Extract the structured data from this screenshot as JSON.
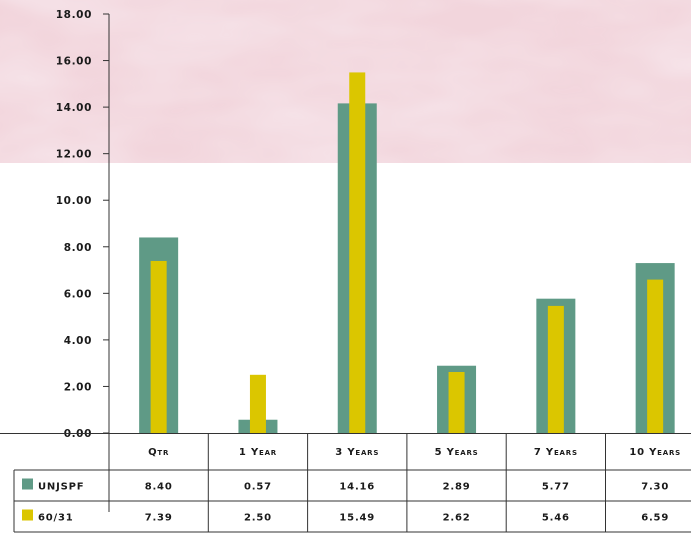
{
  "chart_data": {
    "type": "bar",
    "categories": [
      "Qtr",
      "1 Year",
      "3 Years",
      "5 Years",
      "7 Years",
      "10 Years"
    ],
    "series": [
      {
        "name": "UNJSPF",
        "values": [
          8.4,
          0.57,
          14.16,
          2.89,
          5.77,
          7.3
        ],
        "color": "#5f9a86"
      },
      {
        "name": "60/31",
        "values": [
          7.39,
          2.5,
          15.49,
          2.62,
          5.46,
          6.59
        ],
        "color": "#dbc600"
      }
    ],
    "ylim": [
      0,
      18
    ],
    "yticks": [
      "0.00",
      "2.00",
      "4.00",
      "6.00",
      "8.00",
      "10.00",
      "12.00",
      "14.00",
      "16.00",
      "18.00"
    ],
    "table": {
      "rows": [
        {
          "series": "UNJSPF",
          "cells": [
            "8.40",
            "0.57",
            "14.16",
            "2.89",
            "5.77",
            "7.30"
          ]
        },
        {
          "series": "60/31",
          "cells": [
            "7.39",
            "2.50",
            "15.49",
            "2.62",
            "5.46",
            "6.59"
          ]
        }
      ]
    },
    "background_color": "#f2d5dc",
    "grid": false
  }
}
